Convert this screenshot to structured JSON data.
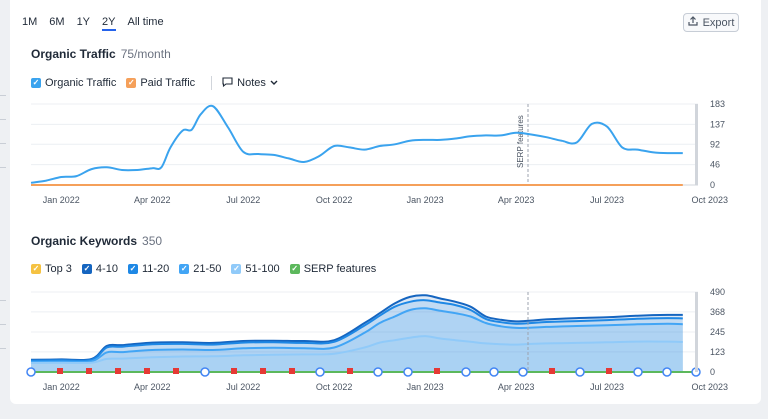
{
  "ranges": [
    {
      "label": "1M",
      "active": false
    },
    {
      "label": "6M",
      "active": false
    },
    {
      "label": "1Y",
      "active": false
    },
    {
      "label": "2Y",
      "active": true
    },
    {
      "label": "All time",
      "active": false
    }
  ],
  "export_label": "Export",
  "traffic": {
    "title": "Organic Traffic",
    "subtitle": "75/month",
    "legend": [
      {
        "label": "Organic Traffic",
        "color": "#3aa3ee",
        "checked": true
      },
      {
        "label": "Paid Traffic",
        "color": "#f5a05a",
        "checked": true
      }
    ],
    "notes_label": "Notes",
    "serp_marker_label": "SERP features"
  },
  "keywords": {
    "title": "Organic Keywords",
    "subtitle": "350",
    "legend": [
      {
        "label": "Top 3",
        "color": "#f5c242",
        "checked": true
      },
      {
        "label": "4-10",
        "color": "#1565c0",
        "checked": true
      },
      {
        "label": "11-20",
        "color": "#1e88e5",
        "checked": true
      },
      {
        "label": "21-50",
        "color": "#42a5f5",
        "checked": true
      },
      {
        "label": "51-100",
        "color": "#90caf9",
        "checked": true
      },
      {
        "label": "SERP features",
        "color": "#5cb85c",
        "checked": true
      }
    ]
  },
  "chart_data": [
    {
      "type": "line",
      "title": "Organic Traffic",
      "x_ticks": [
        "Jan 2022",
        "Apr 2022",
        "Jul 2022",
        "Oct 2022",
        "Jan 2023",
        "Apr 2023",
        "Jul 2023",
        "Oct 2023"
      ],
      "y_ticks": [
        183,
        137,
        92,
        46,
        0
      ],
      "ylim": [
        0,
        183
      ],
      "x": [
        0,
        0.5,
        1,
        1.5,
        2,
        2.5,
        3,
        3.5,
        4,
        4.3,
        4.6,
        5,
        5.3,
        5.6,
        6,
        6.5,
        7,
        7.5,
        8,
        8.5,
        9,
        9.5,
        10,
        10.5,
        11,
        11.5,
        12,
        12.5,
        13,
        13.5,
        14,
        14.5,
        15,
        15.5,
        16,
        16.5,
        17,
        17.5,
        18,
        18.5,
        19,
        19.5,
        20,
        20.5,
        21,
        21.5
      ],
      "series": [
        {
          "name": "Organic Traffic",
          "color": "#3aa3ee",
          "values": [
            5,
            10,
            18,
            20,
            36,
            40,
            34,
            34,
            38,
            40,
            85,
            123,
            125,
            160,
            178,
            130,
            75,
            70,
            68,
            60,
            52,
            65,
            88,
            85,
            80,
            88,
            92,
            100,
            102,
            102,
            105,
            110,
            112,
            112,
            118,
            114,
            108,
            100,
            96,
            138,
            132,
            85,
            80,
            74,
            72,
            72
          ]
        },
        {
          "name": "Paid Traffic",
          "color": "#f5a05a",
          "values": [
            0,
            0,
            0,
            0,
            0,
            0,
            0,
            0,
            0,
            0,
            0,
            0,
            0,
            0,
            0,
            0,
            0,
            0,
            0,
            0,
            0,
            0,
            0,
            0,
            0,
            0,
            0,
            0,
            0,
            0,
            0,
            0,
            0,
            0,
            0,
            0,
            0,
            0,
            0,
            0,
            0,
            0,
            0,
            0,
            0,
            0
          ]
        }
      ]
    },
    {
      "type": "area",
      "title": "Organic Keywords",
      "x_ticks": [
        "Jan 2022",
        "Apr 2022",
        "Jul 2022",
        "Oct 2022",
        "Jan 2023",
        "Apr 2023",
        "Jul 2023",
        "Oct 2023"
      ],
      "y_ticks": [
        490,
        368,
        245,
        123,
        0
      ],
      "ylim": [
        0,
        490
      ],
      "x": [
        0,
        1,
        2,
        2.5,
        3,
        4,
        5,
        6,
        7,
        8,
        9,
        10,
        11,
        11.5,
        12,
        12.5,
        13,
        13.5,
        14,
        14.5,
        15,
        15.5,
        16,
        16.5,
        17,
        18,
        19,
        20,
        21,
        21.5
      ],
      "series": [
        {
          "name": "4-10",
          "color": "#1565c0",
          "values": [
            75,
            77,
            80,
            160,
            165,
            180,
            182,
            178,
            190,
            192,
            190,
            195,
            300,
            360,
            420,
            460,
            470,
            450,
            430,
            400,
            340,
            320,
            310,
            315,
            322,
            330,
            335,
            345,
            350,
            350
          ]
        },
        {
          "name": "11-20",
          "color": "#1e88e5",
          "values": [
            70,
            72,
            74,
            150,
            155,
            170,
            172,
            168,
            180,
            182,
            178,
            185,
            285,
            345,
            400,
            430,
            440,
            425,
            410,
            380,
            325,
            305,
            296,
            300,
            306,
            312,
            318,
            326,
            330,
            328
          ]
        },
        {
          "name": "21-50",
          "color": "#42a5f5",
          "values": [
            62,
            64,
            66,
            120,
            122,
            135,
            138,
            135,
            145,
            148,
            146,
            150,
            240,
            300,
            340,
            380,
            390,
            375,
            360,
            340,
            300,
            280,
            270,
            272,
            276,
            282,
            286,
            292,
            295,
            293
          ]
        },
        {
          "name": "51-100",
          "color": "#90caf9",
          "values": [
            55,
            56,
            57,
            80,
            82,
            90,
            95,
            96,
            102,
            106,
            108,
            112,
            150,
            180,
            195,
            210,
            220,
            205,
            195,
            185,
            175,
            170,
            168,
            172,
            175,
            178,
            182,
            186,
            186,
            184
          ]
        }
      ]
    }
  ]
}
